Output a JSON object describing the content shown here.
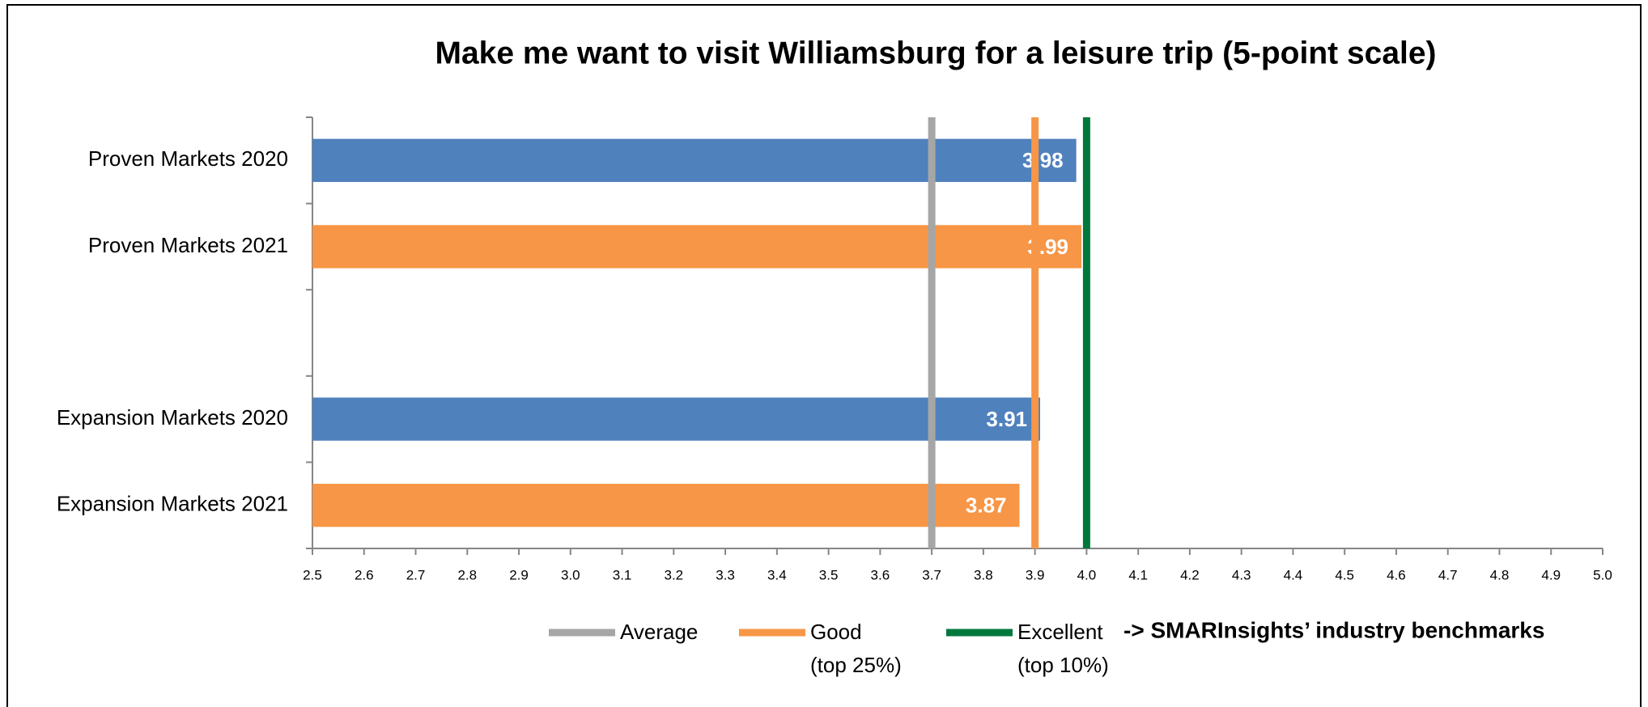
{
  "chart_data": {
    "type": "barh",
    "title": "Make me want to visit Williamsburg for a leisure trip (5-point scale)",
    "categories": [
      "Proven Markets 2020",
      "Proven Markets 2021",
      null,
      "Expansion Markets 2020",
      "Expansion Markets 2021"
    ],
    "values": [
      3.98,
      3.99,
      null,
      3.91,
      3.87
    ],
    "colors": [
      "#4f81bd",
      "#f79646",
      null,
      "#4f81bd",
      "#f79646"
    ],
    "xlim": [
      2.5,
      5
    ],
    "xticks": [
      2.5,
      2.6,
      2.7,
      2.8,
      2.9,
      {
        "value": 3,
        "label": "3.0"
      },
      3.1,
      3.2,
      3.3,
      3.4,
      3.5,
      3.6,
      3.7,
      3.8,
      3.9,
      {
        "value": 4,
        "label": "4.0"
      },
      4.1,
      4.2,
      4.3,
      4.4,
      4.5,
      4.6,
      4.7,
      4.8,
      4.9,
      {
        "value": 5,
        "label": "5.0"
      }
    ],
    "reference_lines": [
      {
        "name": "Average",
        "value": 3.7,
        "color": "#a6a6a6"
      },
      {
        "name": "Good",
        "note": "(top 25%)",
        "value": 3.9,
        "color": "#f79646"
      },
      {
        "name": "Excellent",
        "note": "(top 10%)",
        "value": 4.0,
        "color": "#00783c"
      }
    ],
    "annotation": "-> SMARInsights’ industry benchmarks"
  }
}
